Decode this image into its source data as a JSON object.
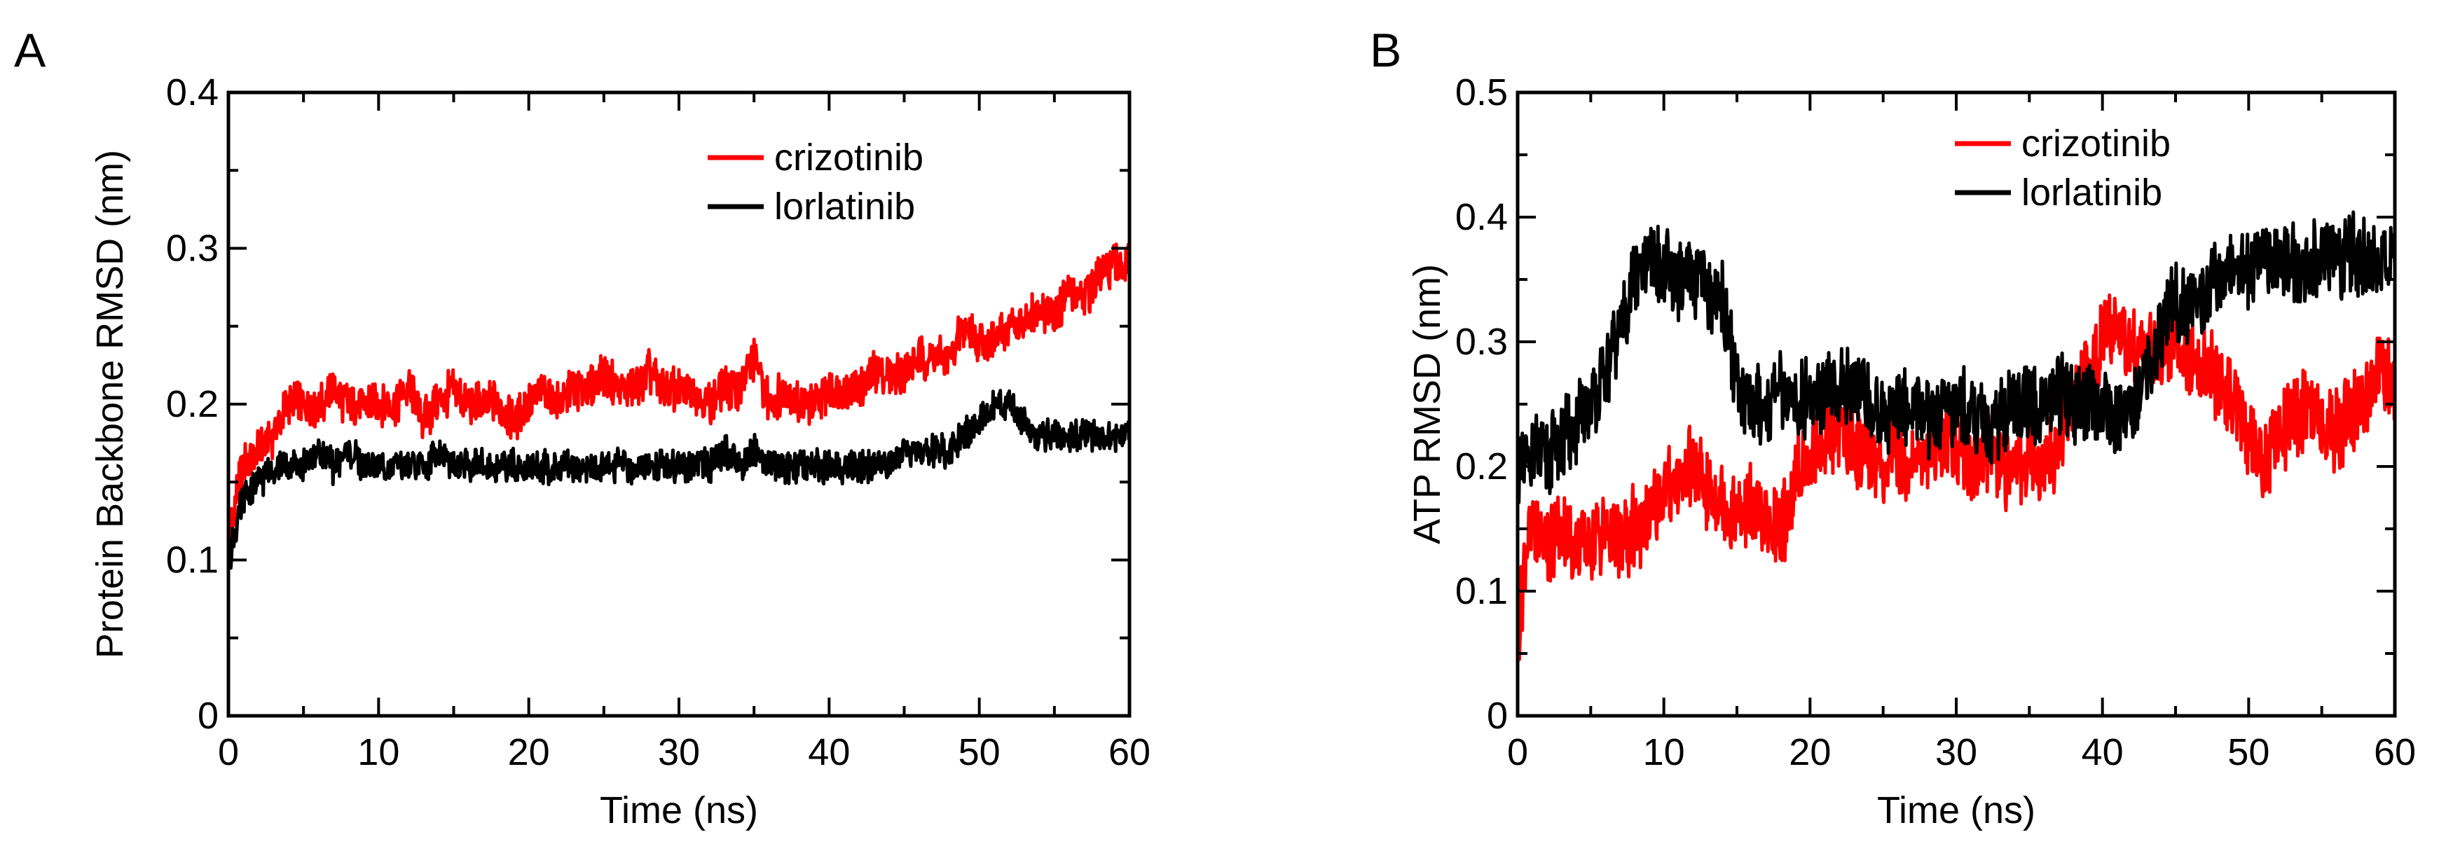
{
  "chart_data": [
    {
      "panel_label": "A",
      "type": "line",
      "title": "",
      "xlabel": "Time (ns)",
      "ylabel": "Protein Backbone RMSD (nm)",
      "xlim": [
        0,
        60
      ],
      "ylim": [
        0,
        0.4
      ],
      "xticks": [
        0,
        10,
        20,
        30,
        40,
        50,
        60
      ],
      "xtick_labels": [
        "0",
        "10",
        "20",
        "30",
        "40",
        "50",
        "60"
      ],
      "yticks": [
        0,
        0.1,
        0.2,
        0.3,
        0.4
      ],
      "ytick_labels": [
        "0",
        "0.1",
        "0.2",
        "0.3",
        "0.4"
      ],
      "grid": false,
      "legend_position": "top-right",
      "series": [
        {
          "name": "crizotinib",
          "color": "#ff0000",
          "x": [
            0,
            0.5,
            1,
            2,
            3,
            4,
            5,
            6,
            7,
            8,
            9,
            10,
            11,
            12,
            13,
            14,
            15,
            16,
            17,
            18,
            19,
            20,
            21,
            22,
            23,
            24,
            25,
            26,
            27,
            28,
            29,
            30,
            31,
            32,
            33,
            34,
            35,
            36,
            37,
            38,
            39,
            40,
            41,
            42,
            43,
            44,
            45,
            46,
            47,
            48,
            49,
            50,
            51,
            52,
            53,
            54,
            55,
            56,
            57,
            58,
            59,
            60
          ],
          "values": [
            0.11,
            0.14,
            0.16,
            0.17,
            0.18,
            0.2,
            0.2,
            0.2,
            0.21,
            0.2,
            0.2,
            0.2,
            0.2,
            0.21,
            0.19,
            0.2,
            0.21,
            0.2,
            0.2,
            0.2,
            0.19,
            0.2,
            0.21,
            0.2,
            0.21,
            0.21,
            0.22,
            0.21,
            0.21,
            0.22,
            0.21,
            0.21,
            0.21,
            0.2,
            0.21,
            0.21,
            0.23,
            0.2,
            0.21,
            0.2,
            0.2,
            0.21,
            0.21,
            0.21,
            0.22,
            0.22,
            0.22,
            0.23,
            0.23,
            0.23,
            0.25,
            0.24,
            0.24,
            0.25,
            0.25,
            0.26,
            0.26,
            0.27,
            0.27,
            0.28,
            0.29,
            0.29
          ]
        },
        {
          "name": "lorlatinib",
          "color": "#000000",
          "x": [
            0,
            0.5,
            1,
            2,
            3,
            4,
            5,
            6,
            7,
            8,
            9,
            10,
            11,
            12,
            13,
            14,
            15,
            16,
            17,
            18,
            19,
            20,
            21,
            22,
            23,
            24,
            25,
            26,
            27,
            28,
            29,
            30,
            31,
            32,
            33,
            34,
            35,
            36,
            37,
            38,
            39,
            40,
            41,
            42,
            43,
            44,
            45,
            46,
            47,
            48,
            49,
            50,
            51,
            52,
            53,
            54,
            55,
            56,
            57,
            58,
            59,
            60
          ],
          "values": [
            0.1,
            0.12,
            0.14,
            0.15,
            0.16,
            0.16,
            0.16,
            0.17,
            0.16,
            0.17,
            0.16,
            0.16,
            0.16,
            0.16,
            0.16,
            0.17,
            0.16,
            0.16,
            0.16,
            0.16,
            0.16,
            0.16,
            0.16,
            0.16,
            0.16,
            0.16,
            0.16,
            0.16,
            0.16,
            0.16,
            0.16,
            0.16,
            0.16,
            0.16,
            0.17,
            0.16,
            0.17,
            0.16,
            0.16,
            0.16,
            0.16,
            0.16,
            0.16,
            0.16,
            0.16,
            0.16,
            0.17,
            0.17,
            0.17,
            0.17,
            0.18,
            0.19,
            0.2,
            0.2,
            0.19,
            0.18,
            0.18,
            0.18,
            0.18,
            0.18,
            0.18,
            0.18
          ]
        }
      ]
    },
    {
      "panel_label": "B",
      "type": "line",
      "title": "",
      "xlabel": "Time (ns)",
      "ylabel": "ATP RMSD (nm)",
      "xlim": [
        0,
        60
      ],
      "ylim": [
        0,
        0.5
      ],
      "xticks": [
        0,
        10,
        20,
        30,
        40,
        50,
        60
      ],
      "xtick_labels": [
        "0",
        "10",
        "20",
        "30",
        "40",
        "50",
        "60"
      ],
      "yticks": [
        0,
        0.1,
        0.2,
        0.3,
        0.4,
        0.5
      ],
      "ytick_labels": [
        "0",
        "0.1",
        "0.2",
        "0.3",
        "0.4",
        "0.5"
      ],
      "grid": false,
      "legend_position": "top-center",
      "series": [
        {
          "name": "crizotinib",
          "color": "#ff0000",
          "x": [
            0,
            0.5,
            1,
            2,
            3,
            4,
            5,
            6,
            7,
            8,
            9,
            10,
            11,
            12,
            13,
            14,
            15,
            16,
            17,
            18,
            19,
            20,
            21,
            22,
            23,
            24,
            25,
            26,
            27,
            28,
            29,
            30,
            31,
            32,
            33,
            34,
            35,
            36,
            37,
            38,
            39,
            40,
            41,
            42,
            43,
            44,
            45,
            46,
            47,
            48,
            49,
            50,
            51,
            52,
            53,
            54,
            55,
            56,
            57,
            58,
            59,
            60
          ],
          "values": [
            0.05,
            0.13,
            0.15,
            0.14,
            0.15,
            0.13,
            0.14,
            0.15,
            0.14,
            0.15,
            0.16,
            0.18,
            0.19,
            0.2,
            0.18,
            0.17,
            0.16,
            0.17,
            0.15,
            0.15,
            0.19,
            0.21,
            0.22,
            0.23,
            0.22,
            0.21,
            0.2,
            0.21,
            0.2,
            0.21,
            0.22,
            0.22,
            0.2,
            0.21,
            0.2,
            0.2,
            0.21,
            0.2,
            0.22,
            0.25,
            0.28,
            0.3,
            0.31,
            0.3,
            0.29,
            0.3,
            0.3,
            0.29,
            0.28,
            0.27,
            0.25,
            0.22,
            0.2,
            0.22,
            0.24,
            0.25,
            0.24,
            0.23,
            0.24,
            0.26,
            0.28,
            0.26
          ]
        },
        {
          "name": "lorlatinib",
          "color": "#000000",
          "x": [
            0,
            0.5,
            1,
            2,
            3,
            4,
            5,
            6,
            7,
            8,
            9,
            10,
            11,
            12,
            13,
            14,
            15,
            16,
            17,
            18,
            19,
            20,
            21,
            22,
            23,
            24,
            25,
            26,
            27,
            28,
            29,
            30,
            31,
            32,
            33,
            34,
            35,
            36,
            37,
            38,
            39,
            40,
            41,
            42,
            43,
            44,
            45,
            46,
            47,
            48,
            49,
            50,
            51,
            52,
            53,
            54,
            55,
            56,
            57,
            58,
            59,
            60
          ],
          "values": [
            0.19,
            0.2,
            0.21,
            0.21,
            0.22,
            0.23,
            0.25,
            0.27,
            0.31,
            0.35,
            0.36,
            0.36,
            0.35,
            0.35,
            0.34,
            0.33,
            0.27,
            0.25,
            0.25,
            0.26,
            0.25,
            0.26,
            0.26,
            0.26,
            0.27,
            0.25,
            0.24,
            0.25,
            0.25,
            0.24,
            0.24,
            0.25,
            0.24,
            0.23,
            0.24,
            0.25,
            0.25,
            0.25,
            0.26,
            0.25,
            0.25,
            0.25,
            0.24,
            0.24,
            0.27,
            0.31,
            0.33,
            0.33,
            0.34,
            0.35,
            0.36,
            0.36,
            0.37,
            0.37,
            0.36,
            0.36,
            0.37,
            0.37,
            0.37,
            0.37,
            0.37,
            0.37
          ]
        }
      ]
    }
  ]
}
